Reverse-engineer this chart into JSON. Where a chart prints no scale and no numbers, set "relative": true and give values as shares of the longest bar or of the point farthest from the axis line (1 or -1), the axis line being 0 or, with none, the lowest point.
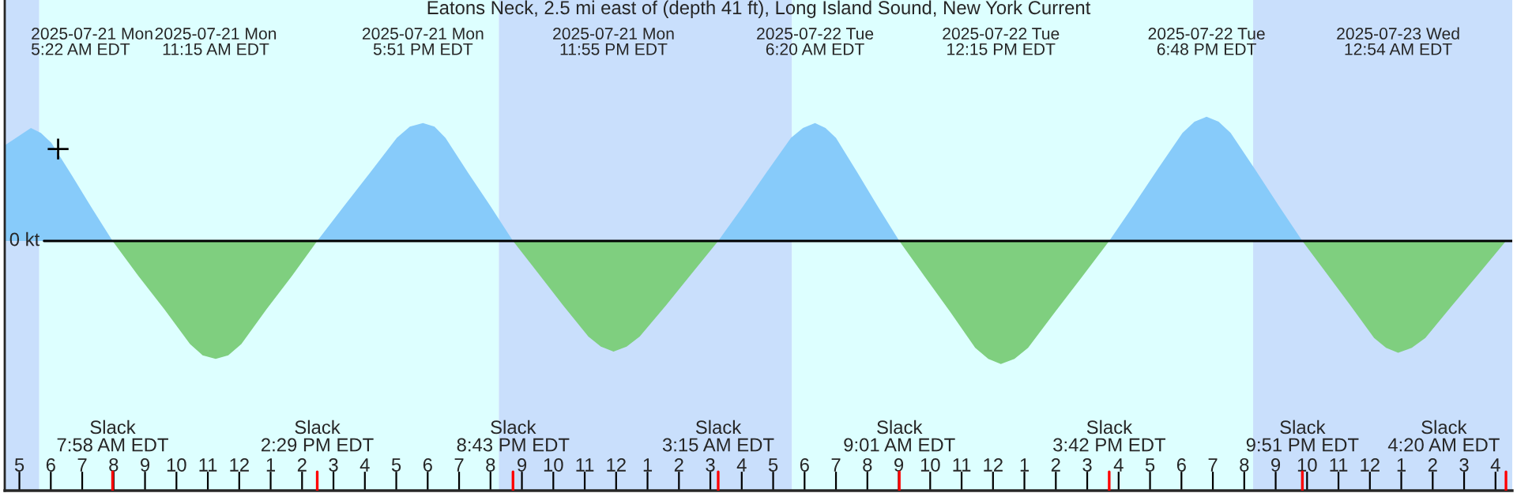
{
  "chart_data": {
    "type": "area",
    "relative": true,
    "title": "Eatons Neck, 2.5 mi east of (depth 41 ft), Long Island Sound, New York Current",
    "x": [
      "2025-07-21T04:32",
      "2025-07-21T05:22",
      "2025-07-21T05:41",
      "2025-07-21T06:01",
      "2025-07-21T06:40",
      "2025-07-21T07:19",
      "2025-07-21T07:58",
      "2025-07-21T08:47",
      "2025-07-21T09:37",
      "2025-07-21T10:26",
      "2025-07-21T10:50",
      "2025-07-21T11:15",
      "2025-07-21T11:39",
      "2025-07-21T12:04",
      "2025-07-21T12:52",
      "2025-07-21T13:41",
      "2025-07-21T14:29",
      "2025-07-21T15:20",
      "2025-07-21T16:10",
      "2025-07-21T17:01",
      "2025-07-21T17:26",
      "2025-07-21T17:51",
      "2025-07-21T18:13",
      "2025-07-21T18:34",
      "2025-07-21T19:17",
      "2025-07-21T20:00",
      "2025-07-21T20:43",
      "2025-07-21T21:31",
      "2025-07-21T22:19",
      "2025-07-21T23:07",
      "2025-07-21T23:31",
      "2025-07-21T23:55",
      "2025-07-22T00:20",
      "2025-07-22T00:45",
      "2025-07-22T01:35",
      "2025-07-22T02:25",
      "2025-07-22T03:15",
      "2025-07-22T04:01",
      "2025-07-22T04:47",
      "2025-07-22T05:34",
      "2025-07-22T05:57",
      "2025-07-22T06:20",
      "2025-07-22T06:40",
      "2025-07-22T07:00",
      "2025-07-22T07:41",
      "2025-07-22T08:21",
      "2025-07-22T09:01",
      "2025-07-22T09:50",
      "2025-07-22T10:38",
      "2025-07-22T11:26",
      "2025-07-22T11:51",
      "2025-07-22T12:15",
      "2025-07-22T12:41",
      "2025-07-22T13:07",
      "2025-07-22T13:59",
      "2025-07-22T14:50",
      "2025-07-22T15:42",
      "2025-07-22T16:29",
      "2025-07-22T17:15",
      "2025-07-22T18:02",
      "2025-07-22T18:25",
      "2025-07-22T18:48",
      "2025-07-22T19:11",
      "2025-07-22T19:34",
      "2025-07-22T20:20",
      "2025-07-22T21:05",
      "2025-07-22T21:51",
      "2025-07-22T22:37",
      "2025-07-22T23:23",
      "2025-07-23T00:08",
      "2025-07-23T00:31",
      "2025-07-23T00:54",
      "2025-07-23T01:20",
      "2025-07-23T01:46",
      "2025-07-23T02:37",
      "2025-07-23T03:29",
      "2025-07-23T04:20"
    ],
    "series": [
      {
        "color": "#87cbfa",
        "values": [
          0.77,
          0.91,
          0.87,
          0.79,
          0.53,
          0.26,
          0,
          null,
          null,
          null,
          null,
          null,
          null,
          null,
          null,
          null,
          0,
          0.28,
          0.55,
          0.83,
          0.92,
          0.95,
          0.92,
          0.83,
          0.55,
          0.28,
          0,
          null,
          null,
          null,
          null,
          null,
          null,
          null,
          null,
          null,
          0,
          0.27,
          0.55,
          0.83,
          0.91,
          0.95,
          0.91,
          0.83,
          0.55,
          0.27,
          0,
          null,
          null,
          null,
          null,
          null,
          null,
          null,
          null,
          null,
          0,
          0.29,
          0.58,
          0.87,
          0.96,
          1,
          0.96,
          0.87,
          0.58,
          0.29,
          0,
          null,
          null,
          null,
          null,
          null,
          null,
          null,
          null,
          null,
          null
        ]
      },
      {
        "color": "#7fcf7f",
        "values": [
          null,
          null,
          null,
          null,
          null,
          null,
          0,
          -0.28,
          -0.55,
          -0.83,
          -0.92,
          -0.95,
          -0.92,
          -0.83,
          -0.55,
          -0.28,
          0,
          null,
          null,
          null,
          null,
          null,
          null,
          null,
          null,
          null,
          0,
          -0.26,
          -0.52,
          -0.77,
          -0.85,
          -0.89,
          -0.85,
          -0.77,
          -0.52,
          -0.26,
          0,
          null,
          null,
          null,
          null,
          null,
          null,
          null,
          null,
          null,
          0,
          -0.29,
          -0.57,
          -0.86,
          -0.95,
          -0.99,
          -0.95,
          -0.86,
          -0.57,
          -0.29,
          0,
          null,
          null,
          null,
          null,
          null,
          null,
          null,
          null,
          null,
          0,
          -0.26,
          -0.52,
          -0.78,
          -0.86,
          -0.9,
          -0.86,
          -0.78,
          -0.52,
          -0.26,
          0
        ]
      },
      {
        "type": "scatter",
        "color": "#000000",
        "marker": "cross",
        "x": [
          "2025-07-21T06:14"
        ],
        "values": [
          0.74
        ]
      }
    ],
    "xlim": [
      "2025-07-21T04:32",
      "2025-07-23T04:32"
    ],
    "xticks": [
      {
        "value": "2025-07-21T05:00",
        "label": "5"
      },
      {
        "value": "2025-07-21T06:00",
        "label": "6"
      },
      {
        "value": "2025-07-21T07:00",
        "label": "7"
      },
      {
        "value": "2025-07-21T08:00",
        "label": "8"
      },
      {
        "value": "2025-07-21T09:00",
        "label": "9"
      },
      {
        "value": "2025-07-21T10:00",
        "label": "10"
      },
      {
        "value": "2025-07-21T11:00",
        "label": "11"
      },
      {
        "value": "2025-07-21T12:00",
        "label": "12"
      },
      {
        "value": "2025-07-21T13:00",
        "label": "1"
      },
      {
        "value": "2025-07-21T14:00",
        "label": "2"
      },
      {
        "value": "2025-07-21T15:00",
        "label": "3"
      },
      {
        "value": "2025-07-21T16:00",
        "label": "4"
      },
      {
        "value": "2025-07-21T17:00",
        "label": "5"
      },
      {
        "value": "2025-07-21T18:00",
        "label": "6"
      },
      {
        "value": "2025-07-21T19:00",
        "label": "7"
      },
      {
        "value": "2025-07-21T20:00",
        "label": "8"
      },
      {
        "value": "2025-07-21T21:00",
        "label": "9"
      },
      {
        "value": "2025-07-21T22:00",
        "label": "10"
      },
      {
        "value": "2025-07-21T23:00",
        "label": "11"
      },
      {
        "value": "2025-07-22T00:00",
        "label": "12"
      },
      {
        "value": "2025-07-22T01:00",
        "label": "1"
      },
      {
        "value": "2025-07-22T02:00",
        "label": "2"
      },
      {
        "value": "2025-07-22T03:00",
        "label": "3"
      },
      {
        "value": "2025-07-22T04:00",
        "label": "4"
      },
      {
        "value": "2025-07-22T05:00",
        "label": "5"
      },
      {
        "value": "2025-07-22T06:00",
        "label": "6"
      },
      {
        "value": "2025-07-22T07:00",
        "label": "7"
      },
      {
        "value": "2025-07-22T08:00",
        "label": "8"
      },
      {
        "value": "2025-07-22T09:00",
        "label": "9"
      },
      {
        "value": "2025-07-22T10:00",
        "label": "10"
      },
      {
        "value": "2025-07-22T11:00",
        "label": "11"
      },
      {
        "value": "2025-07-22T12:00",
        "label": "12"
      },
      {
        "value": "2025-07-22T13:00",
        "label": "1"
      },
      {
        "value": "2025-07-22T14:00",
        "label": "2"
      },
      {
        "value": "2025-07-22T15:00",
        "label": "3"
      },
      {
        "value": "2025-07-22T16:00",
        "label": "4"
      },
      {
        "value": "2025-07-22T17:00",
        "label": "5"
      },
      {
        "value": "2025-07-22T18:00",
        "label": "6"
      },
      {
        "value": "2025-07-22T19:00",
        "label": "7"
      },
      {
        "value": "2025-07-22T20:00",
        "label": "8"
      },
      {
        "value": "2025-07-22T21:00",
        "label": "9"
      },
      {
        "value": "2025-07-22T22:00",
        "label": "10"
      },
      {
        "value": "2025-07-22T23:00",
        "label": "11"
      },
      {
        "value": "2025-07-23T00:00",
        "label": "12"
      },
      {
        "value": "2025-07-23T01:00",
        "label": "1"
      },
      {
        "value": "2025-07-23T02:00",
        "label": "2"
      },
      {
        "value": "2025-07-23T03:00",
        "label": "3"
      },
      {
        "value": "2025-07-23T04:00",
        "label": "4"
      }
    ],
    "x2lim": [
      "2025-07-21T04:32",
      "2025-07-23T04:32"
    ],
    "x2ticks": [
      {
        "value": "2025-07-21T05:22",
        "label": "2025-07-21 Mon\n5:22 AM EDT"
      },
      {
        "value": "2025-07-21T11:15",
        "label": "2025-07-21 Mon\n11:15 AM EDT"
      },
      {
        "value": "2025-07-21T17:51",
        "label": "2025-07-21 Mon\n5:51 PM EDT"
      },
      {
        "value": "2025-07-21T23:55",
        "label": "2025-07-21 Mon\n11:55 PM EDT"
      },
      {
        "value": "2025-07-22T06:20",
        "label": "2025-07-22 Tue\n6:20 AM EDT"
      },
      {
        "value": "2025-07-22T12:15",
        "label": "2025-07-22 Tue\n12:15 PM EDT"
      },
      {
        "value": "2025-07-22T18:48",
        "label": "2025-07-22 Tue\n6:48 PM EDT"
      },
      {
        "value": "2025-07-23T00:54",
        "label": "2025-07-23 Wed\n12:54 AM EDT"
      }
    ],
    "ref_lines": [
      {
        "axis": "y",
        "value": 0,
        "label": "0 kt",
        "color": "#000000"
      },
      {
        "axis": "x",
        "value": "2025-07-21T07:58",
        "label": "Slack\n7:58 AM EDT",
        "color": "#ff0000"
      },
      {
        "axis": "x",
        "value": "2025-07-21T14:29",
        "label": "Slack\n2:29 PM EDT",
        "color": "#ff0000"
      },
      {
        "axis": "x",
        "value": "2025-07-21T20:43",
        "label": "Slack\n8:43 PM EDT",
        "color": "#ff0000"
      },
      {
        "axis": "x",
        "value": "2025-07-22T03:15",
        "label": "Slack\n3:15 AM EDT",
        "color": "#ff0000"
      },
      {
        "axis": "x",
        "value": "2025-07-22T09:01",
        "label": "Slack\n9:01 AM EDT",
        "color": "#ff0000"
      },
      {
        "axis": "x",
        "value": "2025-07-22T15:42",
        "label": "Slack\n3:42 PM EDT",
        "color": "#ff0000"
      },
      {
        "axis": "x",
        "value": "2025-07-22T21:51",
        "label": "Slack\n9:51 PM EDT",
        "color": "#ff0000"
      },
      {
        "axis": "x",
        "value": "2025-07-23T04:20",
        "label": "Slack\n4:20 AM EDT",
        "color": "#ff0000"
      }
    ],
    "bands": [
      {
        "axis": "x",
        "from": "2025-07-21T04:32",
        "to": "2025-07-21T05:38",
        "color": "#c9dffc"
      },
      {
        "axis": "x",
        "from": "2025-07-21T05:38",
        "to": "2025-07-21T20:16",
        "color": "#ddffff"
      },
      {
        "axis": "x",
        "from": "2025-07-21T20:16",
        "to": "2025-07-22T05:36",
        "color": "#c9dffc"
      },
      {
        "axis": "x",
        "from": "2025-07-22T05:36",
        "to": "2025-07-22T20:17",
        "color": "#ddffff"
      },
      {
        "axis": "x",
        "from": "2025-07-22T20:17",
        "to": "2025-07-23T04:32",
        "color": "#c9dffc"
      }
    ],
    "grid": false,
    "legend": false
  }
}
